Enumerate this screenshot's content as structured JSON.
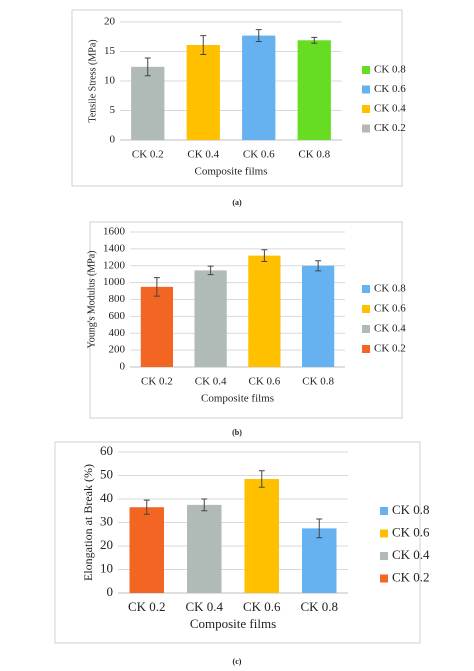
{
  "chart_data": [
    {
      "type": "bar",
      "label": "(a)",
      "xlabel": "Composite films",
      "ylabel": "Tensile Stress (MPa)",
      "categories": [
        "CK 0.2",
        "CK 0.4",
        "CK 0.6",
        "CK 0.8"
      ],
      "values": [
        12.4,
        16.1,
        17.7,
        16.9
      ],
      "errors": [
        1.5,
        1.6,
        1.0,
        0.5
      ],
      "colors": [
        "#b0bbb8",
        "#ffc000",
        "#66b2f0",
        "#66dd22"
      ],
      "ylim": [
        0,
        20
      ],
      "yticks": [
        0,
        5,
        10,
        15,
        20
      ],
      "grid": true,
      "legend": "right",
      "legend_order": "reversed"
    },
    {
      "type": "bar",
      "label": "(b)",
      "xlabel": "Composite films",
      "ylabel": "Young's Modulus (MPa)",
      "categories": [
        "CK 0.2",
        "CK 0.4",
        "CK 0.6",
        "CK 0.8"
      ],
      "values": [
        950,
        1145,
        1320,
        1200
      ],
      "errors": [
        110,
        50,
        70,
        60
      ],
      "colors": [
        "#f26522",
        "#b0bbb8",
        "#ffc000",
        "#66b2f0"
      ],
      "ylim": [
        0,
        1600
      ],
      "yticks": [
        0,
        200,
        400,
        600,
        800,
        1000,
        1200,
        1400,
        1600
      ],
      "grid": true,
      "legend": "right",
      "legend_order": "reversed"
    },
    {
      "type": "bar",
      "label": "(c)",
      "xlabel": "Composite films",
      "ylabel": "Elongation at Break (%)",
      "categories": [
        "CK 0.2",
        "CK 0.4",
        "CK 0.6",
        "CK 0.8"
      ],
      "values": [
        36.5,
        37.5,
        48.5,
        27.5
      ],
      "errors": [
        3,
        2.5,
        3.5,
        4
      ],
      "colors": [
        "#f26522",
        "#b0bbb8",
        "#ffc000",
        "#66b2f0"
      ],
      "ylim": [
        0,
        60
      ],
      "yticks": [
        0,
        10,
        20,
        30,
        40,
        50,
        60
      ],
      "grid": true,
      "legend": "right",
      "legend_order": "reversed"
    }
  ]
}
